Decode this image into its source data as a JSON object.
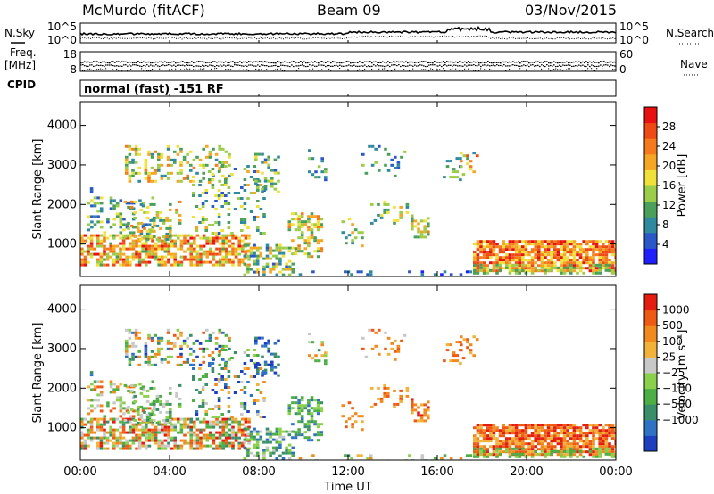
{
  "header": {
    "station": "McMurdo (fitACF)",
    "beam": "Beam 09",
    "date": "03/Nov/2015",
    "mode": "normal (fast) -151 RF"
  },
  "left_labels": {
    "nsky": "N.Sky",
    "freq_top": "Freq.",
    "freq_bottom": "[MHz]",
    "cpid": "CPID"
  },
  "right_labels": {
    "nsearch": "N.Search",
    "nave": "Nave"
  },
  "noise_panel": {
    "left_ticks": [
      "10^5",
      "10^0"
    ],
    "right_ticks": [
      "10^5",
      "10^0"
    ]
  },
  "freq_panel": {
    "left_ticks": [
      "18",
      "8"
    ],
    "right_ticks": [
      "60",
      "0"
    ]
  },
  "chart_data": [
    {
      "type": "heatmap",
      "name": "power",
      "x_ticks": [
        "00:00",
        "04:00",
        "08:00",
        "12:00",
        "16:00",
        "20:00",
        "00:00"
      ],
      "xlim": [
        0,
        24
      ],
      "ylabel": "Slant Range [km]",
      "y_ticks": [
        1000,
        2000,
        3000,
        4000
      ],
      "ylim": [
        180,
        4600
      ],
      "colorbar": {
        "label": "Power [dB]",
        "ticks": [
          "4",
          "8",
          "12",
          "16",
          "20",
          "24",
          "28"
        ],
        "range": [
          0,
          32
        ],
        "colors": [
          "#1f1fff",
          "#2b58c8",
          "#2f8aa0",
          "#4aa05a",
          "#9ccd4a",
          "#f0e03a",
          "#f5a623",
          "#f47a1c",
          "#f04a14",
          "#e81010"
        ]
      }
    },
    {
      "type": "heatmap",
      "name": "velocity",
      "x_ticks": [
        "00:00",
        "04:00",
        "08:00",
        "12:00",
        "16:00",
        "20:00",
        "00:00"
      ],
      "xlim": [
        0,
        24
      ],
      "xlabel": "Time UT",
      "ylabel": "Slant Range [km]",
      "y_ticks": [
        1000,
        2000,
        3000,
        4000
      ],
      "ylim": [
        180,
        4600
      ],
      "colorbar": {
        "label": "Velocity [m s⁻¹]",
        "ticks": [
          "1000",
          "500",
          "100",
          "25",
          "−25",
          "−100",
          "−500",
          "−1000"
        ],
        "colors": [
          "#1c3fbf",
          "#2f72c4",
          "#3a8f6a",
          "#4cae45",
          "#8bd04a",
          "#c8c8c8",
          "#f2b23a",
          "#f08a1e",
          "#ee5a14",
          "#e51d10"
        ]
      }
    }
  ]
}
